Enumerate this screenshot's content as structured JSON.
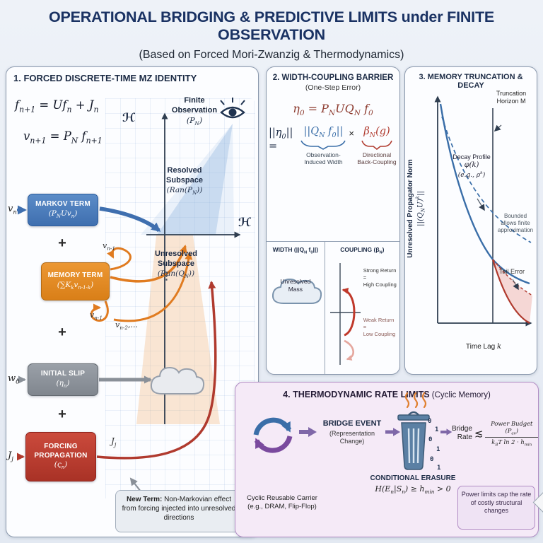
{
  "header": {
    "title": "OPERATIONAL BRIDGING & PREDICTIVE LIMITS under FINITE OBSERVATION",
    "subtitle": "(Based on Forced Mori-Zwanzig & Thermodynamics)"
  },
  "colors": {
    "accent_navy": "#1a3263",
    "markov_blue": "#3f6faf",
    "memory_orange": "#e07b20",
    "slip_gray": "#8a9098",
    "forcing_red": "#b03a2e",
    "thermo_purple": "#7f68a8"
  },
  "panel1": {
    "title": "1. FORCED DISCRETE-TIME MZ IDENTITY",
    "eq1": "f_{n+1} = Uf_{n} + J_{n}",
    "eq2": "v_{n+1} = P_{N} f_{n+1}",
    "finite_obs_line1": "Finite",
    "finite_obs_line2": "Observation",
    "finite_obs_sym": "(P_{N})",
    "hilbert": "ℋ",
    "resolved_line1": "Resolved",
    "resolved_line2": "Subspace",
    "resolved_sym": "(Ran(P_{N}))",
    "unresolved_line1": "Unresolved",
    "unresolved_line2": "Subspace",
    "unresolved_sym": "(Ran(Q_{N}))",
    "markov_input": "v_{n}",
    "markov_title": "MARKOV TERM",
    "markov_formula": "(P_{N}Uv_{n})",
    "plus": "+",
    "memory_title": "MEMORY TERM",
    "memory_formula": "(∑K_{k}v_{n-1-k})",
    "memory_loop_top": "v_{n-1}",
    "memory_loop_bottom": "v_{n-1}",
    "memory_loop_bottom2": "v_{n-2},...",
    "vdots": "⋮",
    "slip_input": "w_{0}",
    "slip_title": "INITIAL SLIP",
    "slip_formula": "(η_{n})",
    "forcing_input": "J_{j}",
    "forcing_arrow_label": "J_{j}",
    "forcing_title_line1": "FORCING",
    "forcing_title_line2": "PROPAGATION",
    "forcing_formula": "(ς_{n})",
    "note_strong": "New Term:",
    "note_text": " Non-Markovian effect from forcing injected into unresolved directions"
  },
  "panel2": {
    "title": "2. WIDTH-COUPLING BARRIER",
    "subtitle": "(One-Step Error)",
    "eq_top": "η_{0} = P_{N}UQ_{N} f_{0}",
    "eq_lhs": "||η_{0}|| =",
    "eq_width": "||Q_{N} f_{0}||",
    "eq_times": "×",
    "eq_coupling": "β_{N}(g)",
    "width_caption": "Observation-Induced Width",
    "coupling_caption": "Directional Back-Coupling",
    "width_header": "WIDTH (||Q_{N} f_{0}||)",
    "coupling_header": "COUPLING (β_{N})",
    "cloud_line1": "Unresolved",
    "cloud_line2": "Mass",
    "strong_line1": "Strong Return =",
    "strong_line2": "High Coupling",
    "weak_line1": "Weak Return =",
    "weak_line2": "Low Coupling"
  },
  "panel3": {
    "title": "3. MEMORY TRUNCATION & DECAY",
    "ylabel_text": "Unresolved Propagator Norm",
    "ylabel_math": "||(Q_{N}U)^{k}||",
    "xlabel_text": "Time Lag",
    "xlabel_var": "k",
    "truncation_line1": "Truncation",
    "truncation_line2": "Horizon M",
    "decay_line1": "Decay Profile",
    "decay_line2": "φ(k)",
    "decay_line3": "(e.g., ρ^{k})",
    "bounded": "Bounded allows finite approximation",
    "tail": "Tail Error"
  },
  "panel4": {
    "title": "4. THERMODYNAMIC RATE LIMITS",
    "title_suffix": " (Cyclic Memory)",
    "carrier_line1": "Cyclic Reusable Carrier",
    "carrier_line2": "(e.g., DRAM, Flip-Flop)",
    "bridge_event": "BRIDGE EVENT",
    "bridge_event_sub": "(Representation Change)",
    "bits": [
      "0",
      "1",
      "0",
      "1",
      "0",
      "1"
    ],
    "erasure_title": "CONDITIONAL ERASURE",
    "erasure_eq": "H(E_{n}|S_{n}) ≥ h_{min} > 0",
    "rate_line1": "Bridge",
    "rate_line2": "Rate",
    "lesssim": "≲",
    "numerator": "Power Budget (P_{av})",
    "denominator": "k_{B}T ln 2 · h_{min}",
    "note": "Power limits cap the rate of costly structural changes"
  }
}
